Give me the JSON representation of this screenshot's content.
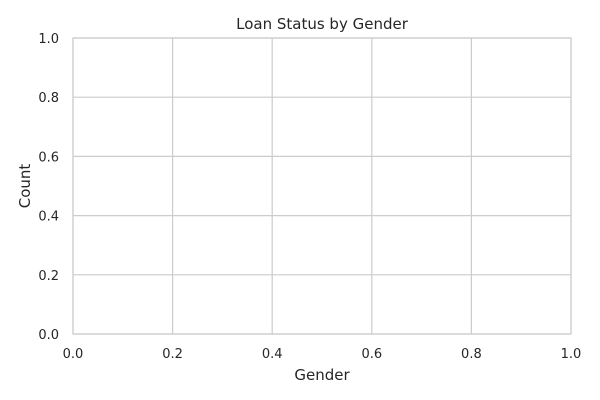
{
  "chart_data": {
    "type": "bar",
    "title": "Loan Status by Gender",
    "xlabel": "Gender",
    "ylabel": "Count",
    "xlim": [
      0,
      1
    ],
    "ylim": [
      0,
      1
    ],
    "x_ticks": [
      "0.0",
      "0.2",
      "0.4",
      "0.6",
      "0.8",
      "1.0"
    ],
    "y_ticks": [
      "0.0",
      "0.2",
      "0.4",
      "0.6",
      "0.8",
      "1.0"
    ],
    "categories": [],
    "series": [],
    "grid": true,
    "colors": {
      "background": "#ffffff",
      "grid": "#cccccc",
      "text": "#262626"
    }
  }
}
